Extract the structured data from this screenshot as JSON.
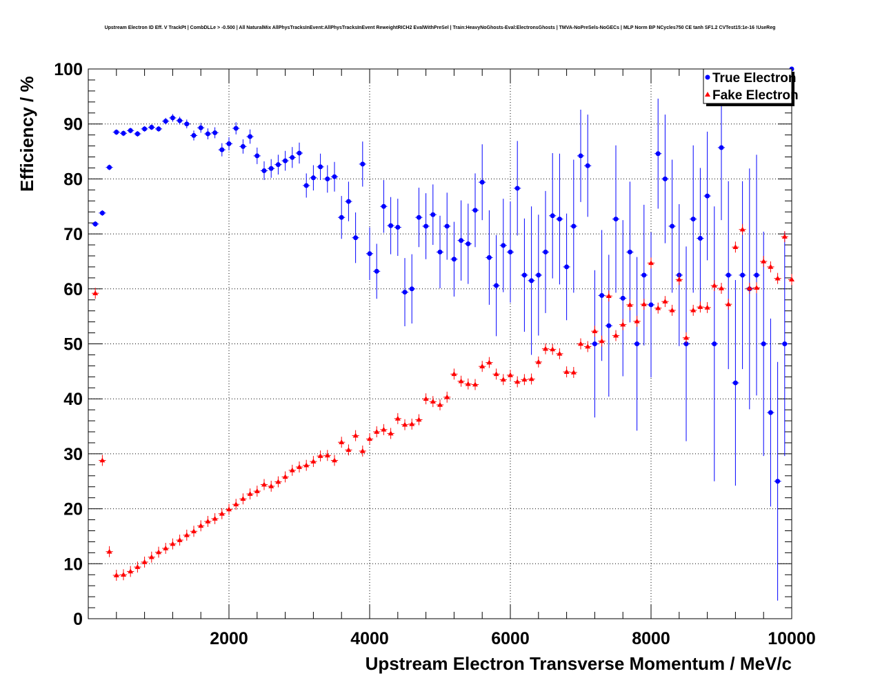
{
  "chart_data": {
    "type": "scatter",
    "title": "Upstream Electron ID Eff. V TrackPt | CombDLLe > -0.500 | All NaturalMix AllPhysTracksInEvent:AllPhysTracksInEvent ReweightRICH2 EvalWithPreSel | Train:HeavyNoGhosts-Eval:ElectronsGhosts | TMVA-NoPreSels-NoGECs | MLP Norm BP NCycles750 CE tanh SF1.2 CVTest15:1e-16 !UseReg",
    "xlabel": "Upstream Electron Transverse Momentum / MeV/c",
    "ylabel": "Efficiency / %",
    "xlim": [
      0,
      10000
    ],
    "ylim": [
      0,
      100
    ],
    "xticks": [
      2000,
      4000,
      6000,
      8000,
      10000
    ],
    "yticks": [
      0,
      10,
      20,
      30,
      40,
      50,
      60,
      70,
      80,
      90,
      100
    ],
    "grid": true,
    "legend_position": "top-right",
    "bin_width": 100,
    "series": [
      {
        "name": "True Electron",
        "color": "#0000ff",
        "marker": "circle",
        "x": [
          100,
          200,
          300,
          400,
          500,
          600,
          700,
          800,
          900,
          1000,
          1100,
          1200,
          1300,
          1400,
          1500,
          1600,
          1700,
          1800,
          1900,
          2000,
          2100,
          2200,
          2300,
          2400,
          2500,
          2600,
          2700,
          2800,
          2900,
          3000,
          3100,
          3200,
          3300,
          3400,
          3500,
          3600,
          3700,
          3800,
          3900,
          4000,
          4100,
          4200,
          4300,
          4400,
          4500,
          4600,
          4700,
          4800,
          4900,
          5000,
          5100,
          5200,
          5300,
          5400,
          5500,
          5600,
          5700,
          5800,
          5900,
          6000,
          6100,
          6200,
          6300,
          6400,
          6500,
          6600,
          6700,
          6800,
          6900,
          7000,
          7100,
          7200,
          7300,
          7400,
          7500,
          7600,
          7700,
          7800,
          7900,
          8000,
          8100,
          8200,
          8300,
          8400,
          8500,
          8600,
          8700,
          8800,
          8900,
          9000,
          9100,
          9200,
          9300,
          9400,
          9500,
          9600,
          9700,
          9800,
          9900,
          10000
        ],
        "y": [
          71.8,
          73.8,
          82.1,
          88.5,
          88.3,
          88.8,
          88.2,
          89.1,
          89.4,
          89.1,
          90.5,
          91.1,
          90.6,
          90.0,
          87.9,
          89.3,
          88.2,
          88.4,
          85.3,
          86.4,
          89.2,
          85.9,
          87.7,
          84.2,
          81.5,
          81.9,
          82.6,
          83.3,
          83.9,
          84.7,
          78.8,
          80.2,
          82.2,
          80.0,
          80.4,
          73.0,
          75.9,
          69.3,
          82.7,
          66.4,
          63.2,
          75.0,
          71.5,
          71.2,
          59.4,
          60.0,
          73.0,
          71.4,
          73.5,
          66.7,
          71.4,
          65.4,
          68.8,
          68.2,
          74.3,
          79.4,
          65.7,
          60.6,
          67.9,
          66.7,
          78.3,
          62.5,
          61.5,
          62.5,
          66.7,
          73.3,
          72.7,
          64.0,
          71.4,
          84.2,
          82.4,
          50.0,
          58.8,
          53.3,
          72.7,
          58.3,
          66.7,
          50.0,
          62.5,
          57.1,
          84.6,
          80.0,
          71.4,
          62.5,
          50.0,
          72.7,
          69.2,
          76.9,
          50.0,
          85.7,
          62.5,
          42.9,
          62.5,
          60.0,
          62.5,
          50.0,
          37.5,
          25.0,
          50.0,
          100.0
        ],
        "err": [
          0.5,
          0.5,
          0.5,
          0.5,
          0.5,
          0.5,
          0.5,
          0.5,
          0.5,
          0.5,
          0.6,
          0.7,
          0.7,
          0.8,
          0.9,
          0.9,
          1.0,
          1.0,
          1.2,
          1.2,
          1.1,
          1.3,
          1.3,
          1.5,
          1.7,
          1.7,
          1.8,
          1.8,
          1.9,
          1.9,
          2.2,
          2.3,
          2.4,
          2.5,
          2.7,
          3.9,
          3.6,
          4.6,
          4.1,
          4.8,
          5.0,
          4.8,
          5.2,
          5.2,
          6.2,
          6.3,
          5.4,
          6.0,
          5.5,
          6.6,
          6.1,
          6.8,
          7.3,
          7.3,
          6.7,
          6.9,
          8.6,
          9.2,
          8.5,
          9.2,
          8.6,
          10.3,
          13.5,
          11.0,
          11.1,
          11.4,
          11.9,
          9.7,
          12.1,
          8.4,
          9.3,
          13.4,
          11.9,
          12.9,
          13.4,
          14.2,
          12.8,
          15.8,
          12.8,
          13.2,
          10.0,
          11.7,
          12.1,
          12.9,
          17.7,
          13.4,
          12.8,
          11.7,
          25.0,
          13.2,
          17.1,
          18.7,
          17.1,
          21.9,
          21.9,
          20.4,
          17.1,
          21.7,
          20.4,
          0.0
        ]
      },
      {
        "name": "Fake Electron",
        "color": "#ff0000",
        "marker": "triangle",
        "x": [
          100,
          200,
          300,
          400,
          500,
          600,
          700,
          800,
          900,
          1000,
          1100,
          1200,
          1300,
          1400,
          1500,
          1600,
          1700,
          1800,
          1900,
          2000,
          2100,
          2200,
          2300,
          2400,
          2500,
          2600,
          2700,
          2800,
          2900,
          3000,
          3100,
          3200,
          3300,
          3400,
          3500,
          3600,
          3700,
          3800,
          3900,
          4000,
          4100,
          4200,
          4300,
          4400,
          4500,
          4600,
          4700,
          4800,
          4900,
          5000,
          5100,
          5200,
          5300,
          5400,
          5500,
          5600,
          5700,
          5800,
          5900,
          6000,
          6100,
          6200,
          6300,
          6400,
          6500,
          6600,
          6700,
          6800,
          6900,
          7000,
          7100,
          7200,
          7300,
          7400,
          7500,
          7600,
          7700,
          7800,
          7900,
          8000,
          8100,
          8200,
          8300,
          8400,
          8500,
          8600,
          8700,
          8800,
          8900,
          9000,
          9100,
          9200,
          9300,
          9400,
          9500,
          9600,
          9700,
          9800,
          9900,
          10000
        ],
        "y": [
          59.2,
          28.8,
          12.2,
          7.9,
          8.0,
          8.6,
          9.4,
          10.3,
          11.2,
          12.1,
          12.8,
          13.6,
          14.3,
          15.2,
          15.9,
          16.9,
          17.7,
          18.2,
          19.1,
          19.9,
          20.8,
          21.8,
          22.7,
          23.2,
          24.4,
          24.1,
          24.9,
          25.8,
          27.0,
          27.6,
          27.9,
          28.6,
          29.6,
          29.7,
          28.8,
          32.1,
          30.7,
          33.3,
          30.5,
          32.7,
          34.0,
          34.4,
          33.7,
          36.4,
          35.3,
          35.4,
          36.2,
          40.0,
          39.5,
          38.9,
          40.3,
          44.5,
          43.2,
          42.7,
          42.6,
          45.9,
          46.6,
          44.5,
          43.5,
          44.3,
          43.1,
          43.5,
          43.6,
          46.7,
          49.1,
          49.0,
          48.2,
          44.9,
          44.8,
          50.0,
          49.5,
          52.3,
          50.5,
          58.7,
          51.5,
          53.5,
          57.1,
          54.1,
          57.2,
          64.7,
          56.5,
          57.7,
          56.1,
          61.7,
          51.1,
          56.1,
          56.7,
          56.6,
          60.6,
          60.1,
          57.2,
          67.6,
          70.8,
          60.1,
          60.2,
          65.0,
          64.0,
          61.9,
          69.5,
          61.7
        ]
      }
    ]
  }
}
